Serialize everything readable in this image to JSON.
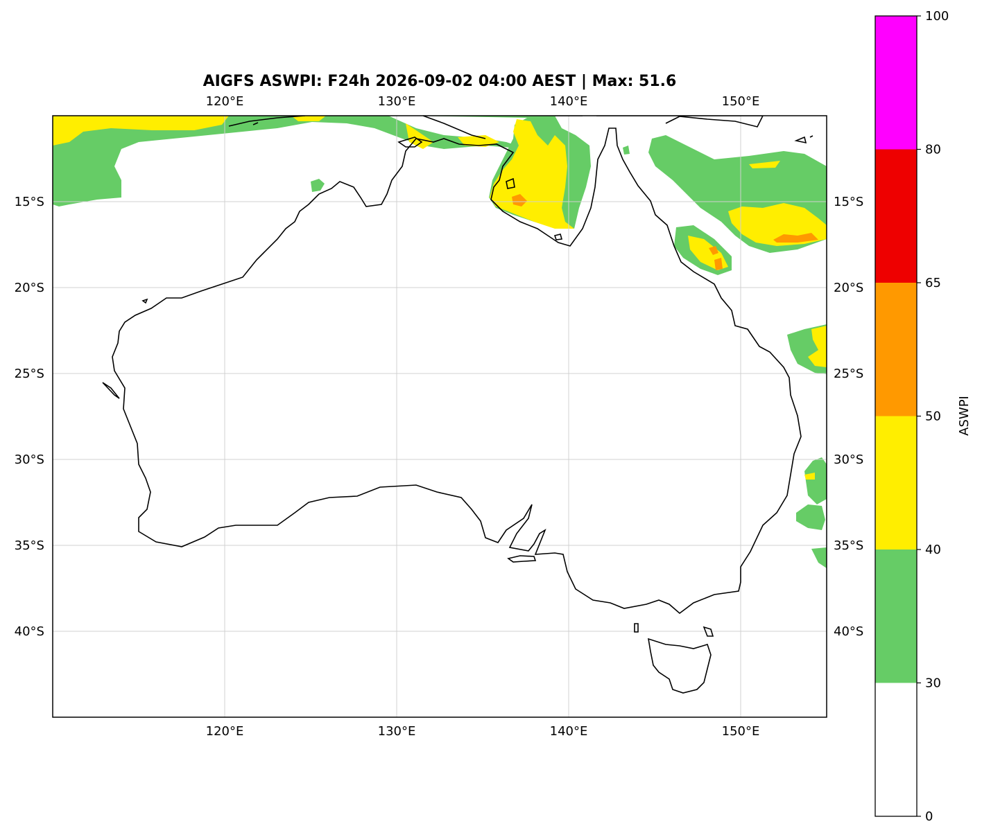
{
  "title": "AIGFS ASWPI: F24h 2026-09-02 04:00 AEST | Max: 51.6",
  "map": {
    "projection": "PlateCarree",
    "lon_range": [
      110,
      155
    ],
    "lat_range": [
      -45,
      -10
    ],
    "gridlines": true,
    "lon_ticks": [
      {
        "value": 120,
        "label": "120°E"
      },
      {
        "value": 130,
        "label": "130°E"
      },
      {
        "value": 140,
        "label": "140°E"
      },
      {
        "value": 150,
        "label": "150°E"
      }
    ],
    "lat_ticks": [
      {
        "value": -15,
        "label": "15°S"
      },
      {
        "value": -20,
        "label": "20°S"
      },
      {
        "value": -25,
        "label": "25°S"
      },
      {
        "value": -30,
        "label": "30°S"
      },
      {
        "value": -35,
        "label": "35°S"
      },
      {
        "value": -40,
        "label": "40°S"
      }
    ]
  },
  "colorbar": {
    "label": "ASWPI",
    "bounds": [
      0,
      30,
      40,
      50,
      65,
      80,
      100
    ],
    "tick_labels": [
      "0",
      "30",
      "40",
      "50",
      "65",
      "80",
      "100"
    ],
    "colors": [
      "#ffffff",
      "#66cc66",
      "#ffee00",
      "#ff9900",
      "#ee0000",
      "#ff00ff"
    ]
  },
  "chart_data": {
    "type": "heatmap",
    "title": "AIGFS ASWPI: F24h 2026-09-02 04:00 AEST | Max: 51.6",
    "max_value": 51.6,
    "regions": [
      {
        "area": "Timor Sea / Kimberley offshore (11–15°S, 110–133°E)",
        "category": "30-40",
        "color": "#66cc66"
      },
      {
        "area": "Timor Sea north edge (10–11°S, 110–123°E)",
        "category": "40-50",
        "color": "#ffee00"
      },
      {
        "area": "Gulf of Carpentaria (10–17°S, 135–141°E)",
        "category": "40-50",
        "color": "#ffee00"
      },
      {
        "area": "Gulf of Carpentaria core (~15.5°S, 137°E)",
        "category": "50-65",
        "color": "#ff9900"
      },
      {
        "area": "Coral Sea (12–18°S, 145–155°E)",
        "category": "40-50",
        "color": "#ffee00"
      },
      {
        "area": "Coral Sea cores (~17°S, 148–152°E)",
        "category": "50-65",
        "color": "#ff9900"
      },
      {
        "area": "Off SE Queensland (22–25°S, 153–155°E)",
        "category": "40-50",
        "color": "#ffee00"
      },
      {
        "area": "Off NSW coast (30–35°S, 153–155°E)",
        "category": "30-40",
        "color": "#66cc66"
      }
    ]
  }
}
